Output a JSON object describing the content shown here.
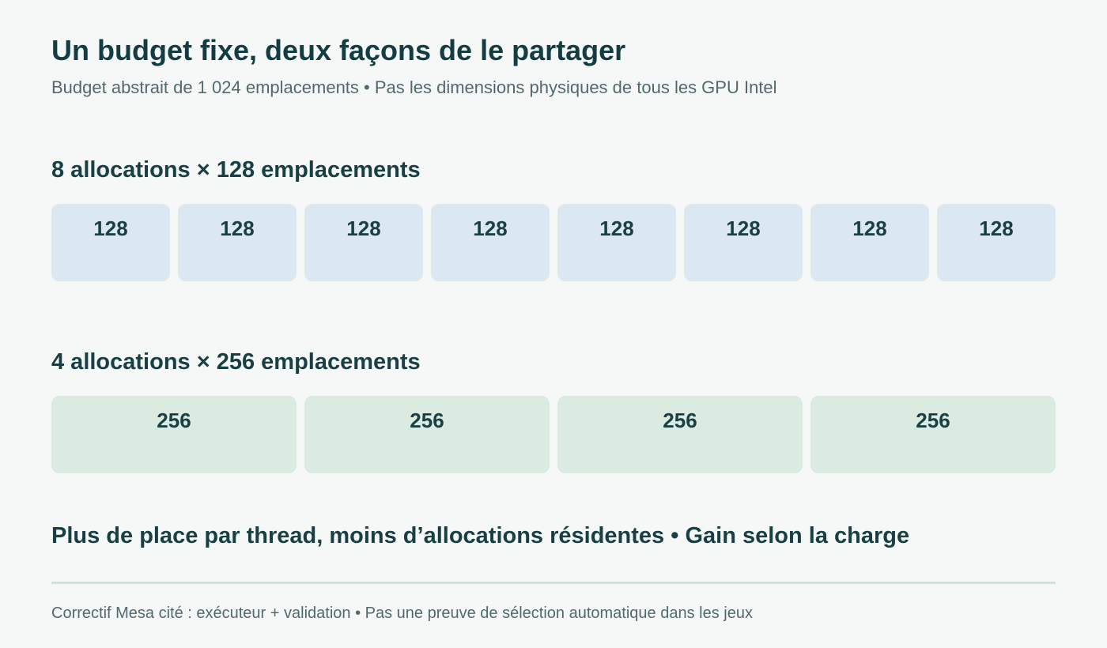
{
  "title": "Un budget fixe, deux façons de le partager",
  "subtitle": "Budget abstrait de 1 024 emplacements • Pas les dimensions physiques de tous les GPU Intel",
  "sections": [
    {
      "heading": "8 allocations × 128 emplacements",
      "blocks": [
        "128",
        "128",
        "128",
        "128",
        "128",
        "128",
        "128",
        "128"
      ]
    },
    {
      "heading": "4 allocations × 256 emplacements",
      "blocks": [
        "256",
        "256",
        "256",
        "256"
      ]
    }
  ],
  "takeaway": "Plus de place par thread, moins d’allocations résidentes • Gain selon la charge",
  "footnote": "Correctif Mesa cité : exécuteur + validation • Pas une preuve de sélection automatique dans les jeux",
  "colors": {
    "background": "#f6f8f7",
    "text": "#173f44",
    "block_128": "#dbe8f1",
    "block_256": "#dbebe1",
    "divider": "#cfe0df"
  }
}
